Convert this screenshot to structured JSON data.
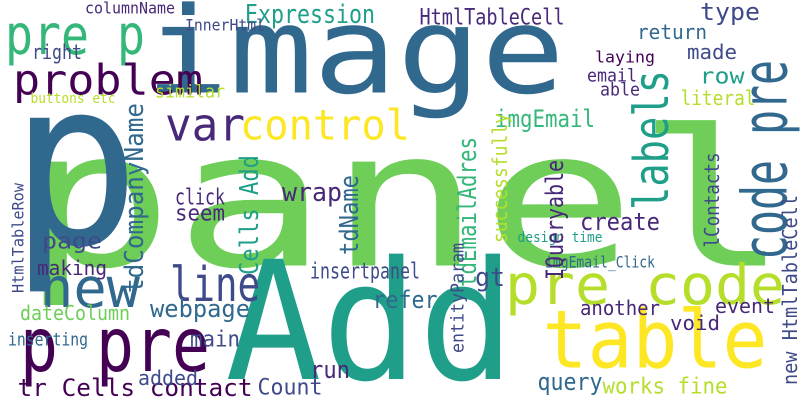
{
  "words": [
    "panel",
    "Add",
    "image",
    "p",
    "pre p",
    "problem",
    "new",
    "p pre",
    "tr Cells contact",
    "table",
    "pre code",
    "code pre",
    "labels",
    "control",
    "var",
    "line",
    "Expression",
    "HtmlTableCell",
    "type",
    "columnName",
    "InnerHtml",
    "right",
    "return",
    "made",
    "laying",
    "literal",
    "row",
    "email",
    "able",
    "imgEmail",
    "similar",
    "click",
    "seem",
    "wrap",
    "create",
    "page",
    "making",
    "insertpanel",
    "refer",
    "webpage",
    "main",
    "added",
    "run",
    "Count",
    "query",
    "works fine",
    "void",
    "event",
    "another",
    "gt",
    "imgEmail_Click",
    "dateColumn",
    "inserting",
    "buttons etc",
    "design time",
    "tdCompanyName",
    "Cells Add",
    "tdName",
    "tdEmailAdres",
    "IQueryable",
    "successfully",
    "entityParam",
    "HtmlTableRow",
    "lContacts",
    "new HtmlTableCell"
  ]
}
